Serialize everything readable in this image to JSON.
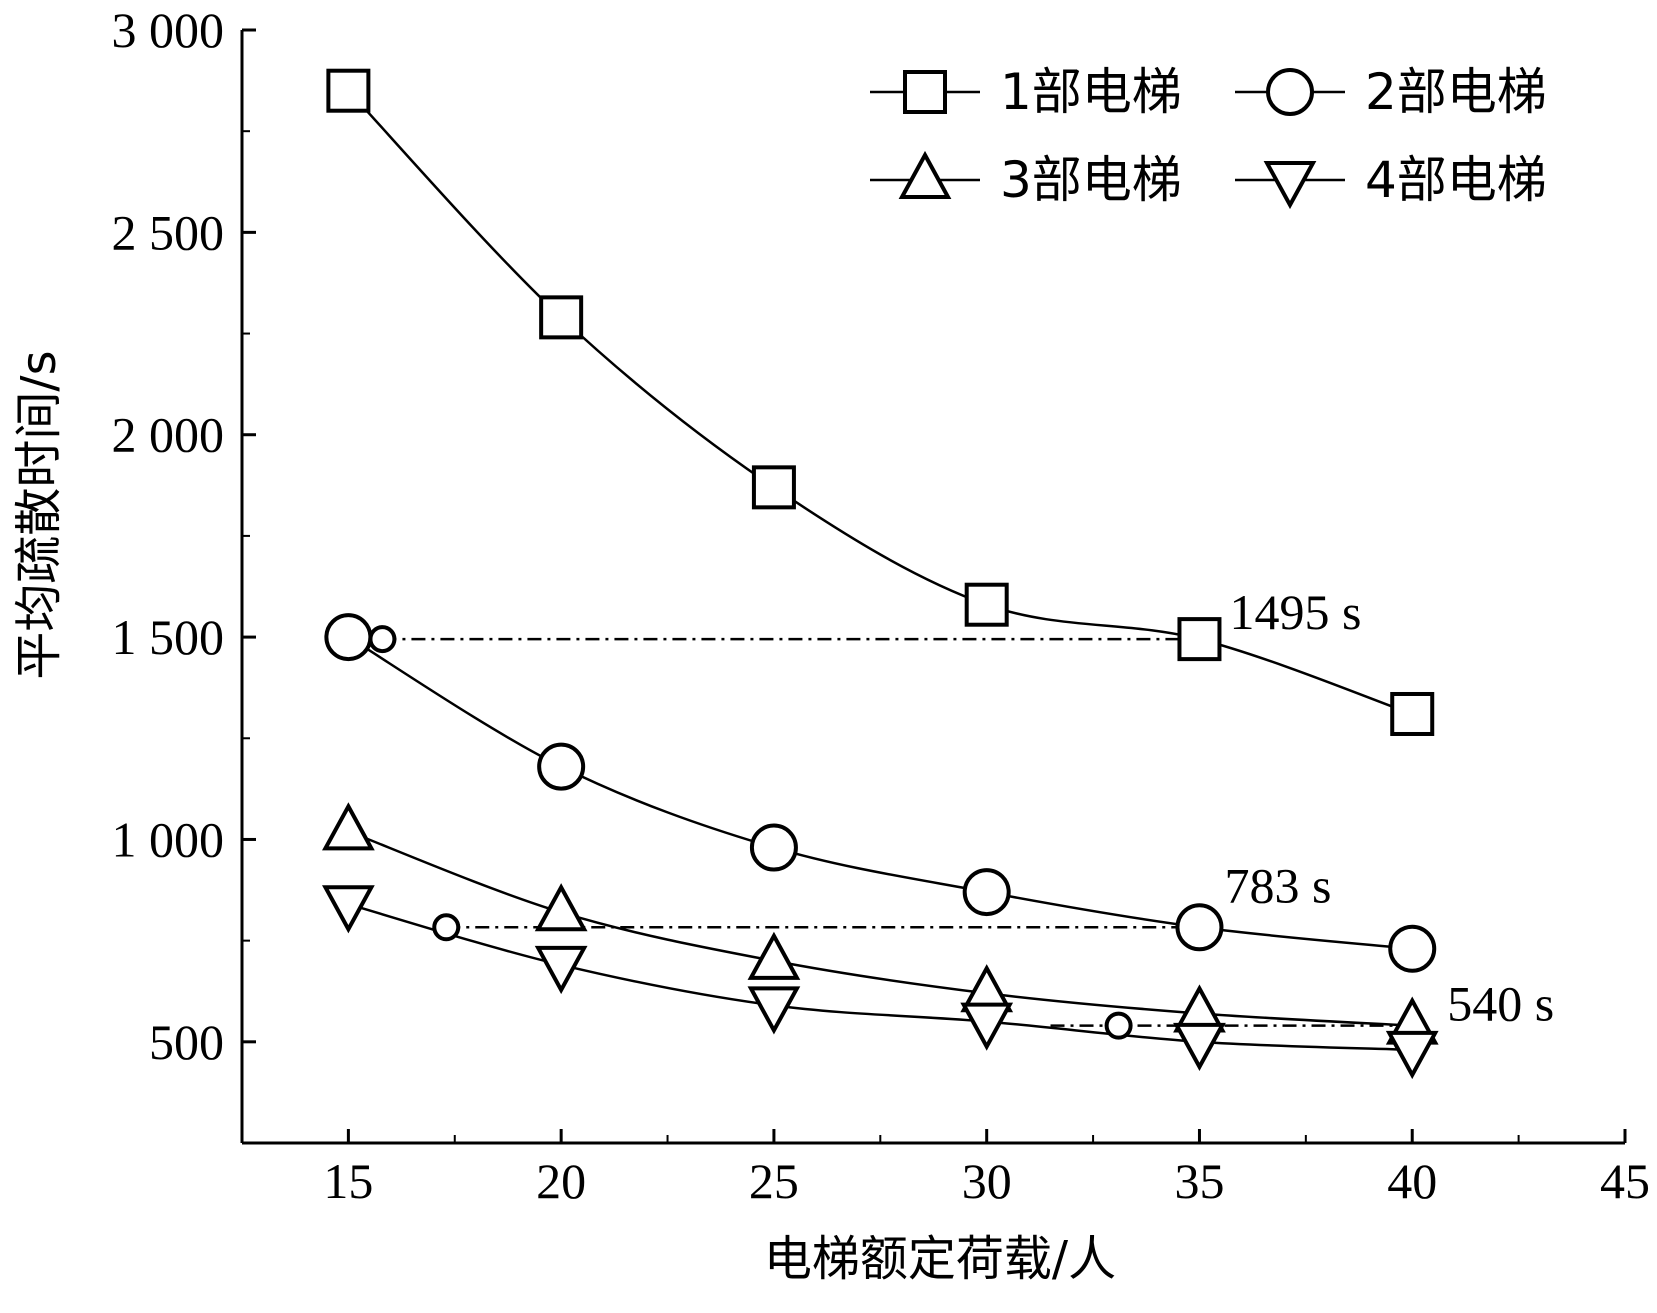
{
  "chart_data": {
    "type": "line",
    "title": "",
    "xlabel": "电梯额定荷载/人",
    "ylabel": "平均疏散时间/s",
    "xlim": [
      12.5,
      45
    ],
    "ylim": [
      250,
      3000
    ],
    "x_ticks": [
      15,
      20,
      25,
      30,
      35,
      40,
      45
    ],
    "x_tick_labels": [
      "15",
      "20",
      "25",
      "30",
      "35",
      "40",
      "45"
    ],
    "y_ticks": [
      500,
      1000,
      1500,
      2000,
      2500,
      3000
    ],
    "y_tick_labels": [
      "500",
      "1 000",
      "1 500",
      "2 000",
      "2 500",
      "3 000"
    ],
    "grid": false,
    "legend_position": "top-right",
    "x": [
      15,
      20,
      25,
      30,
      35,
      40
    ],
    "series": [
      {
        "name": "1部电梯",
        "marker": "square",
        "values": [
          2850,
          2290,
          1870,
          1580,
          1495,
          1310
        ]
      },
      {
        "name": "2部电梯",
        "marker": "circle",
        "values": [
          1500,
          1180,
          980,
          870,
          783,
          730
        ]
      },
      {
        "name": "3部电梯",
        "marker": "triangle-up",
        "values": [
          1020,
          820,
          700,
          620,
          570,
          540
        ]
      },
      {
        "name": "4部电梯",
        "marker": "triangle-down",
        "values": [
          840,
          690,
          590,
          550,
          500,
          480
        ]
      }
    ],
    "reference_lines": [
      {
        "from_x": 15.8,
        "to_x": 35,
        "y": 1495,
        "label": "1495 s",
        "start_marker": "small-circle"
      },
      {
        "from_x": 17.3,
        "to_x": 35,
        "y": 783,
        "label": "783 s",
        "start_marker": "small-circle"
      },
      {
        "from_x": 31.5,
        "to_x": 40,
        "y": 540,
        "label": "540 s",
        "start_marker": "small-circle",
        "start_marker_x": 33.1
      }
    ]
  }
}
